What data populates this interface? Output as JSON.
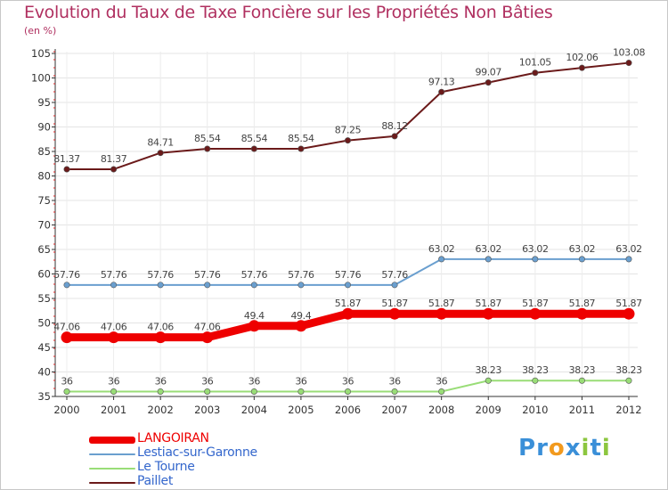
{
  "title": "Evolution du Taux de Taxe Foncière sur les Propriétés Non Bâties",
  "unit": "(en %)",
  "logo": {
    "letters": [
      "P",
      "r",
      "o",
      "x",
      "i",
      "t",
      "i"
    ],
    "colors": [
      "#3a8fd8",
      "#3a8fd8",
      "#f29a1e",
      "#3a8fd8",
      "#8cc63f",
      "#3a8fd8",
      "#8cc63f"
    ]
  },
  "chart_data": {
    "type": "line",
    "title": "Evolution du Taux de Taxe Foncière sur les Propriétés Non Bâties",
    "ylabel": "(en %)",
    "xlabel": "",
    "ylim": [
      35,
      105
    ],
    "yticks": [
      35,
      40,
      45,
      50,
      55,
      60,
      65,
      70,
      75,
      80,
      85,
      90,
      95,
      100,
      105
    ],
    "categories": [
      "2000",
      "2001",
      "2002",
      "2003",
      "2004",
      "2005",
      "2006",
      "2007",
      "2008",
      "2009",
      "2010",
      "2011",
      "2012"
    ],
    "series": [
      {
        "name": "LANGOIRAN",
        "color": "#ee0000",
        "labelColor": "#ee0000",
        "emphasis": true,
        "values": [
          47.06,
          47.06,
          47.06,
          47.06,
          49.4,
          49.4,
          51.87,
          51.87,
          51.87,
          51.87,
          51.87,
          51.87,
          51.87
        ],
        "labels": [
          "47.06",
          "47.06",
          "47.06",
          "47.06",
          "49.4",
          "49.4",
          "51.87",
          "51.87",
          "51.87",
          "51.87",
          "51.87",
          "51.87",
          "51.87"
        ]
      },
      {
        "name": "Lestiac-sur-Garonne",
        "color": "#6a9fcf",
        "labelColor": "#3366cc",
        "emphasis": false,
        "values": [
          57.76,
          57.76,
          57.76,
          57.76,
          57.76,
          57.76,
          57.76,
          57.76,
          63.02,
          63.02,
          63.02,
          63.02,
          63.02
        ],
        "labels": [
          "57.76",
          "57.76",
          "57.76",
          "57.76",
          "57.76",
          "57.76",
          "57.76",
          "57.76",
          "63.02",
          "63.02",
          "63.02",
          "63.02",
          "63.02"
        ]
      },
      {
        "name": "Le Tourne",
        "color": "#99dd77",
        "labelColor": "#3366cc",
        "emphasis": false,
        "values": [
          36,
          36,
          36,
          36,
          36,
          36,
          36,
          36,
          36,
          38.23,
          38.23,
          38.23,
          38.23
        ],
        "labels": [
          "36",
          "36",
          "36",
          "36",
          "36",
          "36",
          "36",
          "36",
          "36",
          "38.23",
          "38.23",
          "38.23",
          "38.23"
        ]
      },
      {
        "name": "Paillet",
        "color": "#6b1a1a",
        "labelColor": "#3366cc",
        "emphasis": false,
        "values": [
          81.37,
          81.37,
          84.71,
          85.54,
          85.54,
          85.54,
          87.25,
          88.12,
          97.13,
          99.07,
          101.05,
          102.06,
          103.08
        ],
        "labels": [
          "81.37",
          "81.37",
          "84.71",
          "85.54",
          "85.54",
          "85.54",
          "87.25",
          "88.12",
          "97.13",
          "99.07",
          "101.05",
          "102.06",
          "103.08"
        ]
      }
    ]
  }
}
